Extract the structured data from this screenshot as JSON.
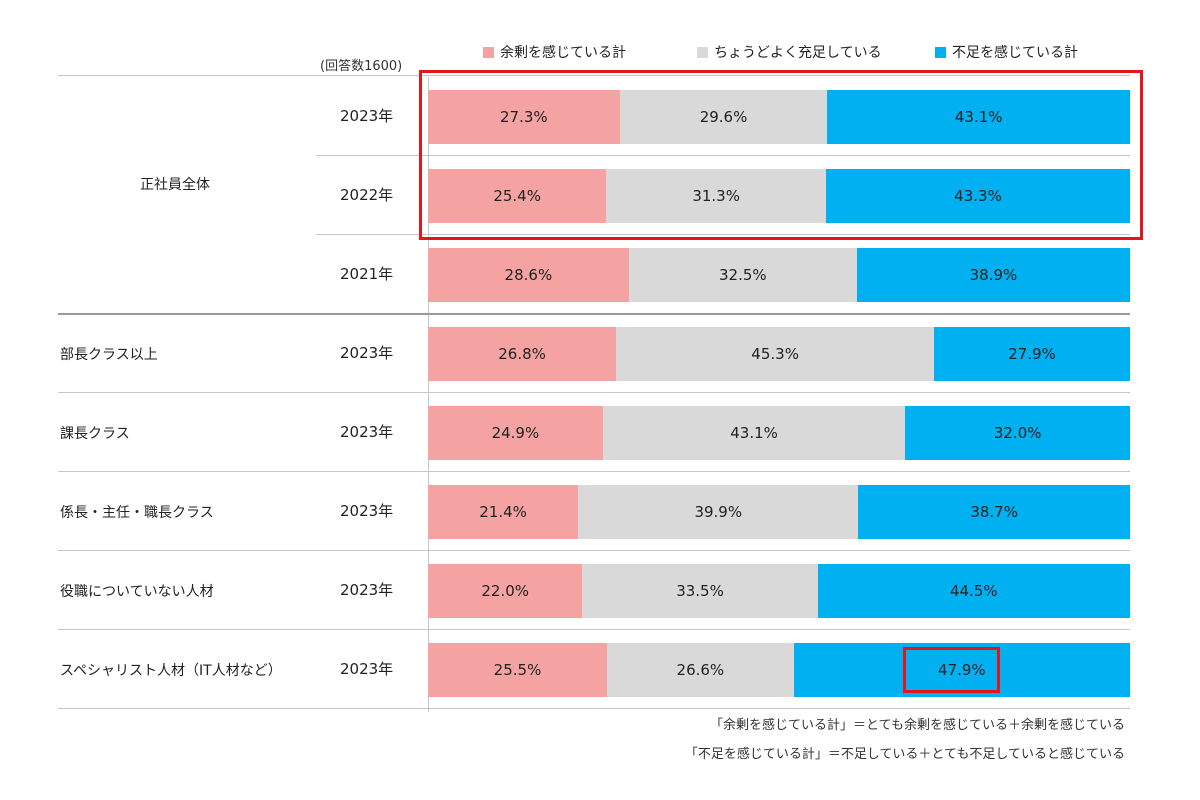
{
  "chart_data": {
    "type": "bar",
    "orientation": "horizontal",
    "stacked": true,
    "sample_note": "(回答数1600)",
    "legend": [
      {
        "name": "余剰を感じている計",
        "color": "#f4a2a2"
      },
      {
        "name": "ちょうどよく充足している",
        "color": "#d9d9d9"
      },
      {
        "name": "不足を感じている計",
        "color": "#00b0f0"
      }
    ],
    "groups": [
      {
        "label": "正社員全体",
        "rows": [
          {
            "year": "2023年",
            "values": [
              27.3,
              29.6,
              43.1
            ],
            "labels": [
              "27.3%",
              "29.6%",
              "43.1%"
            ]
          },
          {
            "year": "2022年",
            "values": [
              25.4,
              31.3,
              43.3
            ],
            "labels": [
              "25.4%",
              "31.3%",
              "43.3%"
            ]
          },
          {
            "year": "2021年",
            "values": [
              28.6,
              32.5,
              38.9
            ],
            "labels": [
              "28.6%",
              "32.5%",
              "38.9%"
            ]
          }
        ]
      },
      {
        "label": "部長クラス以上",
        "rows": [
          {
            "year": "2023年",
            "values": [
              26.8,
              45.3,
              27.9
            ],
            "labels": [
              "26.8%",
              "45.3%",
              "27.9%"
            ]
          }
        ]
      },
      {
        "label": "課長クラス",
        "rows": [
          {
            "year": "2023年",
            "values": [
              24.9,
              43.1,
              32.0
            ],
            "labels": [
              "24.9%",
              "43.1%",
              "32.0%"
            ]
          }
        ]
      },
      {
        "label": "係長・主任・職長クラス",
        "rows": [
          {
            "year": "2023年",
            "values": [
              21.4,
              39.9,
              38.7
            ],
            "labels": [
              "21.4%",
              "39.9%",
              "38.7%"
            ]
          }
        ]
      },
      {
        "label": "役職についていない人材",
        "rows": [
          {
            "year": "2023年",
            "values": [
              22.0,
              33.5,
              44.5
            ],
            "labels": [
              "22.0%",
              "33.5%",
              "44.5%"
            ]
          }
        ]
      },
      {
        "label": "スペシャリスト人材（IT人材など）",
        "rows": [
          {
            "year": "2023年",
            "values": [
              25.5,
              26.6,
              47.9
            ],
            "labels": [
              "25.5%",
              "26.6%",
              "47.9%"
            ]
          }
        ]
      }
    ],
    "highlights": [
      "正社員全体 2023年・2022年",
      "スペシャリスト人材（IT人材など） 2023年 不足を感じている計"
    ],
    "xlim": [
      0,
      100
    ]
  },
  "footnotes": [
    "「余剰を感じている計」＝とても余剰を感じている＋余剰を感じている",
    "「不足を感じている計」＝不足している＋とても不足していると感じている"
  ]
}
